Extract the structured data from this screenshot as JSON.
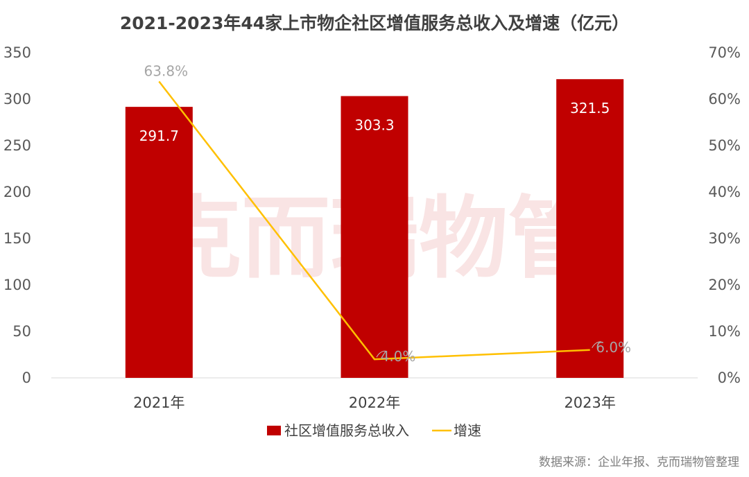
{
  "chart_data": {
    "type": "bar",
    "title": "2021-2023年44家上市物企社区增值服务总收入及增速（亿元）",
    "categories": [
      "2021年",
      "2022年",
      "2023年"
    ],
    "series": [
      {
        "name": "社区增值服务总收入",
        "type": "bar",
        "axis": "left",
        "color": "#c00000",
        "values": [
          291.7,
          303.3,
          321.5
        ],
        "labels": [
          "291.7",
          "303.3",
          "321.5"
        ]
      },
      {
        "name": "增速",
        "type": "line",
        "axis": "right",
        "color": "#ffc000",
        "values": [
          63.8,
          4.0,
          6.0
        ],
        "labels": [
          "63.8%",
          "4.0%",
          "6.0%"
        ]
      }
    ],
    "y_left": {
      "min": 0,
      "max": 350,
      "ticks": [
        "0",
        "50",
        "100",
        "150",
        "200",
        "250",
        "300",
        "350"
      ]
    },
    "y_right": {
      "min": 0,
      "max": 70,
      "unit": "%",
      "ticks": [
        "0%",
        "10%",
        "20%",
        "30%",
        "40%",
        "50%",
        "60%",
        "70%"
      ]
    },
    "grid": false,
    "legend_position": "bottom",
    "source": "数据来源：企业年报、克而瑞物管整理",
    "watermark": "克而瑞物管"
  }
}
